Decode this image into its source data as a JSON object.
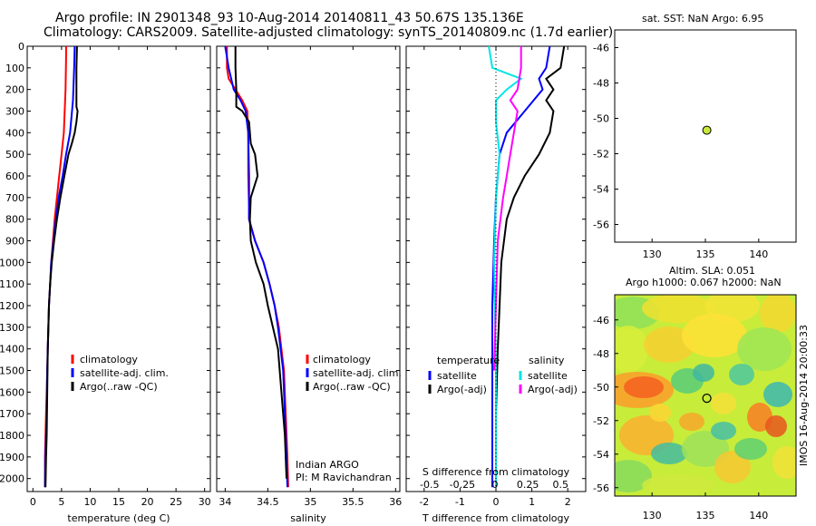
{
  "header": {
    "line1": "Argo profile: IN 2901348_93 10-Aug-2014 20140811_43 50.67S 135.136E",
    "line2": "Climatology: CARS2009. Satellite-adjusted climatology: synTS_20140809.nc (1.7d earlier)"
  },
  "colors": {
    "climatology": "#ff0000",
    "satellite": "#0000ff",
    "argo": "#000000",
    "salinity_satellite": "#00e5e5",
    "salinity_argo": "#ff00ff"
  },
  "panels": {
    "temperature": {
      "xlabel": "temperature (deg C)",
      "legend": [
        "climatology",
        "satellite-adj. clim.",
        "Argo(..raw -QC)"
      ]
    },
    "salinity": {
      "xlabel": "salinity",
      "legend": [
        "climatology",
        "satellite-adj. clim.",
        "Argo(..raw -QC)"
      ],
      "note1": "Indian ARGO",
      "note2": "PI: M Ravichandran"
    },
    "difference": {
      "xlabel": "T difference from climatology",
      "xlabel_top": "S difference from climatology",
      "legend_t_title": "temperature",
      "legend_s_title": "salinity",
      "legend": [
        "satellite",
        "Argo(-adj)",
        "satellite",
        "Argo(-adj)"
      ]
    },
    "sst_map": {
      "title": "sat. SST: NaN Argo: 6.95"
    },
    "sla_map": {
      "title1": "Altim. SLA: 0.051",
      "title2": "Argo h1000: 0.067 h2000: NaN",
      "side_label": "IMOS 16-Aug-2014 20:00:33"
    }
  },
  "chart_data": [
    {
      "type": "line",
      "panel": "temperature",
      "xlabel": "temperature (deg C)",
      "xlim": [
        -1,
        31
      ],
      "ylim": [
        2060,
        0
      ],
      "xticks": [
        0,
        5,
        10,
        15,
        20,
        25,
        30
      ],
      "yticks": [
        0,
        100,
        200,
        300,
        400,
        500,
        600,
        700,
        800,
        900,
        1000,
        1100,
        1200,
        1300,
        1400,
        1500,
        1600,
        1700,
        1800,
        1900,
        2000
      ],
      "series": [
        {
          "name": "climatology",
          "color": "#ff0000",
          "x": [
            5.8,
            5.8,
            5.7,
            5.4,
            5.0,
            4.6,
            4.2,
            3.8,
            3.5,
            3.2,
            3.0,
            2.8,
            2.6,
            2.5,
            2.4,
            2.3,
            2.2,
            2.1,
            2.1
          ],
          "y": [
            0,
            50,
            200,
            400,
            500,
            600,
            700,
            800,
            900,
            1000,
            1100,
            1200,
            1400,
            1500,
            1600,
            1700,
            1800,
            1900,
            2040
          ]
        },
        {
          "name": "satellite-adj. clim.",
          "color": "#0000ff",
          "x": [
            7.3,
            7.2,
            7.0,
            6.5,
            5.8,
            5.2,
            4.5,
            4.0,
            3.6,
            3.2,
            3.0,
            2.8,
            2.6,
            2.5,
            2.4,
            2.3,
            2.2,
            2.1
          ],
          "y": [
            0,
            100,
            250,
            400,
            500,
            600,
            700,
            800,
            900,
            1000,
            1100,
            1200,
            1400,
            1500,
            1700,
            1800,
            1900,
            2040
          ]
        },
        {
          "name": "Argo(..raw -QC)",
          "color": "#000000",
          "x": [
            7.7,
            7.6,
            7.6,
            7.8,
            7.6,
            7.3,
            6.8,
            6.2,
            5.5,
            4.8,
            4.2,
            3.7,
            3.3,
            3.0,
            2.8,
            2.6,
            2.5,
            2.4,
            2.3,
            2.2
          ],
          "y": [
            0,
            100,
            280,
            300,
            350,
            400,
            450,
            500,
            600,
            700,
            800,
            900,
            1000,
            1100,
            1200,
            1400,
            1600,
            1800,
            1900,
            2040
          ]
        }
      ]
    },
    {
      "type": "line",
      "panel": "salinity",
      "xlabel": "salinity",
      "xlim": [
        33.9,
        36.05
      ],
      "ylim": [
        2060,
        0
      ],
      "xticks": [
        34,
        34.5,
        35,
        35.5,
        36
      ],
      "series": [
        {
          "name": "climatology",
          "color": "#ff0000",
          "x": [
            34.02,
            34.02,
            34.04,
            34.12,
            34.2,
            34.26,
            34.27,
            34.27,
            34.28,
            34.28,
            34.35,
            34.45,
            34.52,
            34.58,
            34.63,
            34.66,
            34.69,
            34.71,
            34.73,
            34.74
          ],
          "y": [
            0,
            100,
            150,
            200,
            250,
            300,
            400,
            600,
            750,
            800,
            900,
            1000,
            1100,
            1200,
            1300,
            1400,
            1500,
            1700,
            1900,
            2040
          ]
        },
        {
          "name": "satellite-adj. clim.",
          "color": "#0000ff",
          "x": [
            34.0,
            34.04,
            34.1,
            34.18,
            34.24,
            34.27,
            34.28,
            34.28,
            34.35,
            34.45,
            34.52,
            34.58,
            34.62,
            34.65,
            34.68,
            34.7,
            34.72,
            34.73
          ],
          "y": [
            0,
            100,
            200,
            250,
            300,
            400,
            600,
            800,
            900,
            1000,
            1100,
            1200,
            1300,
            1400,
            1500,
            1700,
            1900,
            2040
          ]
        },
        {
          "name": "Argo(..raw -QC)",
          "color": "#000000",
          "x": [
            34.12,
            34.12,
            34.13,
            34.13,
            34.2,
            34.28,
            34.3,
            34.35,
            34.38,
            34.3,
            34.29,
            34.3,
            34.36,
            34.45,
            34.5,
            34.56,
            34.62,
            34.66,
            34.7,
            34.72
          ],
          "y": [
            0,
            100,
            200,
            280,
            300,
            350,
            450,
            500,
            600,
            700,
            800,
            900,
            1000,
            1100,
            1200,
            1300,
            1400,
            1600,
            1800,
            2000
          ]
        }
      ]
    },
    {
      "type": "line",
      "panel": "difference",
      "xlabel": "T difference from climatology",
      "xlabel_top": "S difference from climatology",
      "xlim": [
        -2.5,
        2.5
      ],
      "ylim": [
        2060,
        0
      ],
      "xticks": [
        -2,
        -1,
        0,
        1,
        2
      ],
      "xticks_top": [
        -0.5,
        -0.25,
        0,
        0.25,
        0.5
      ],
      "series": [
        {
          "name": "temperature satellite",
          "color": "#0000ff",
          "x": [
            1.5,
            1.4,
            1.2,
            1.3,
            0.8,
            0.3,
            0.1,
            0.0,
            -0.05,
            -0.1,
            -0.1,
            -0.1,
            -0.1
          ],
          "y": [
            0,
            100,
            150,
            200,
            300,
            400,
            500,
            700,
            900,
            1200,
            1500,
            1800,
            2040
          ]
        },
        {
          "name": "temperature Argo(-adj)",
          "color": "#000000",
          "x": [
            1.9,
            1.8,
            1.4,
            1.6,
            1.4,
            1.6,
            1.5,
            1.2,
            0.8,
            0.5,
            0.3,
            0.15,
            0.1,
            0.05,
            0.0,
            0.0
          ],
          "y": [
            0,
            100,
            150,
            200,
            250,
            300,
            400,
            500,
            600,
            700,
            800,
            1000,
            1200,
            1400,
            1700,
            2040
          ]
        },
        {
          "name": "salinity satellite",
          "color": "#00e5e5",
          "x": [
            -0.2,
            -0.1,
            0.7,
            0.3,
            0.0,
            0.0,
            0.1,
            0.0,
            -0.05,
            0.0,
            0.0
          ],
          "y": [
            0,
            100,
            150,
            200,
            250,
            350,
            500,
            700,
            1000,
            1500,
            2040
          ]
        },
        {
          "name": "salinity Argo(-adj)",
          "color": "#ff00ff",
          "x": [
            0.7,
            0.7,
            0.6,
            0.4,
            0.6,
            0.5,
            0.4,
            0.3,
            0.2,
            0.05,
            0.0,
            -0.05
          ],
          "y": [
            0,
            100,
            200,
            250,
            300,
            400,
            500,
            600,
            700,
            900,
            1200,
            1500
          ]
        }
      ]
    },
    {
      "type": "scatter",
      "panel": "sst_map",
      "xlim": [
        126.5,
        143.5
      ],
      "ylim": [
        -57,
        -45
      ],
      "xticks": [
        130,
        135,
        140
      ],
      "yticks": [
        -46,
        -48,
        -50,
        -52,
        -54,
        -56
      ],
      "x": [
        135.136
      ],
      "y": [
        -50.67
      ]
    },
    {
      "type": "heatmap",
      "panel": "sla_map",
      "xlim": [
        126.5,
        143.5
      ],
      "ylim": [
        -56.5,
        -44.5
      ],
      "xticks": [
        130,
        135,
        140
      ],
      "yticks": [
        -46,
        -48,
        -50,
        -52,
        -54,
        -56
      ],
      "marker": {
        "x": 135.136,
        "y": -50.67
      }
    }
  ]
}
